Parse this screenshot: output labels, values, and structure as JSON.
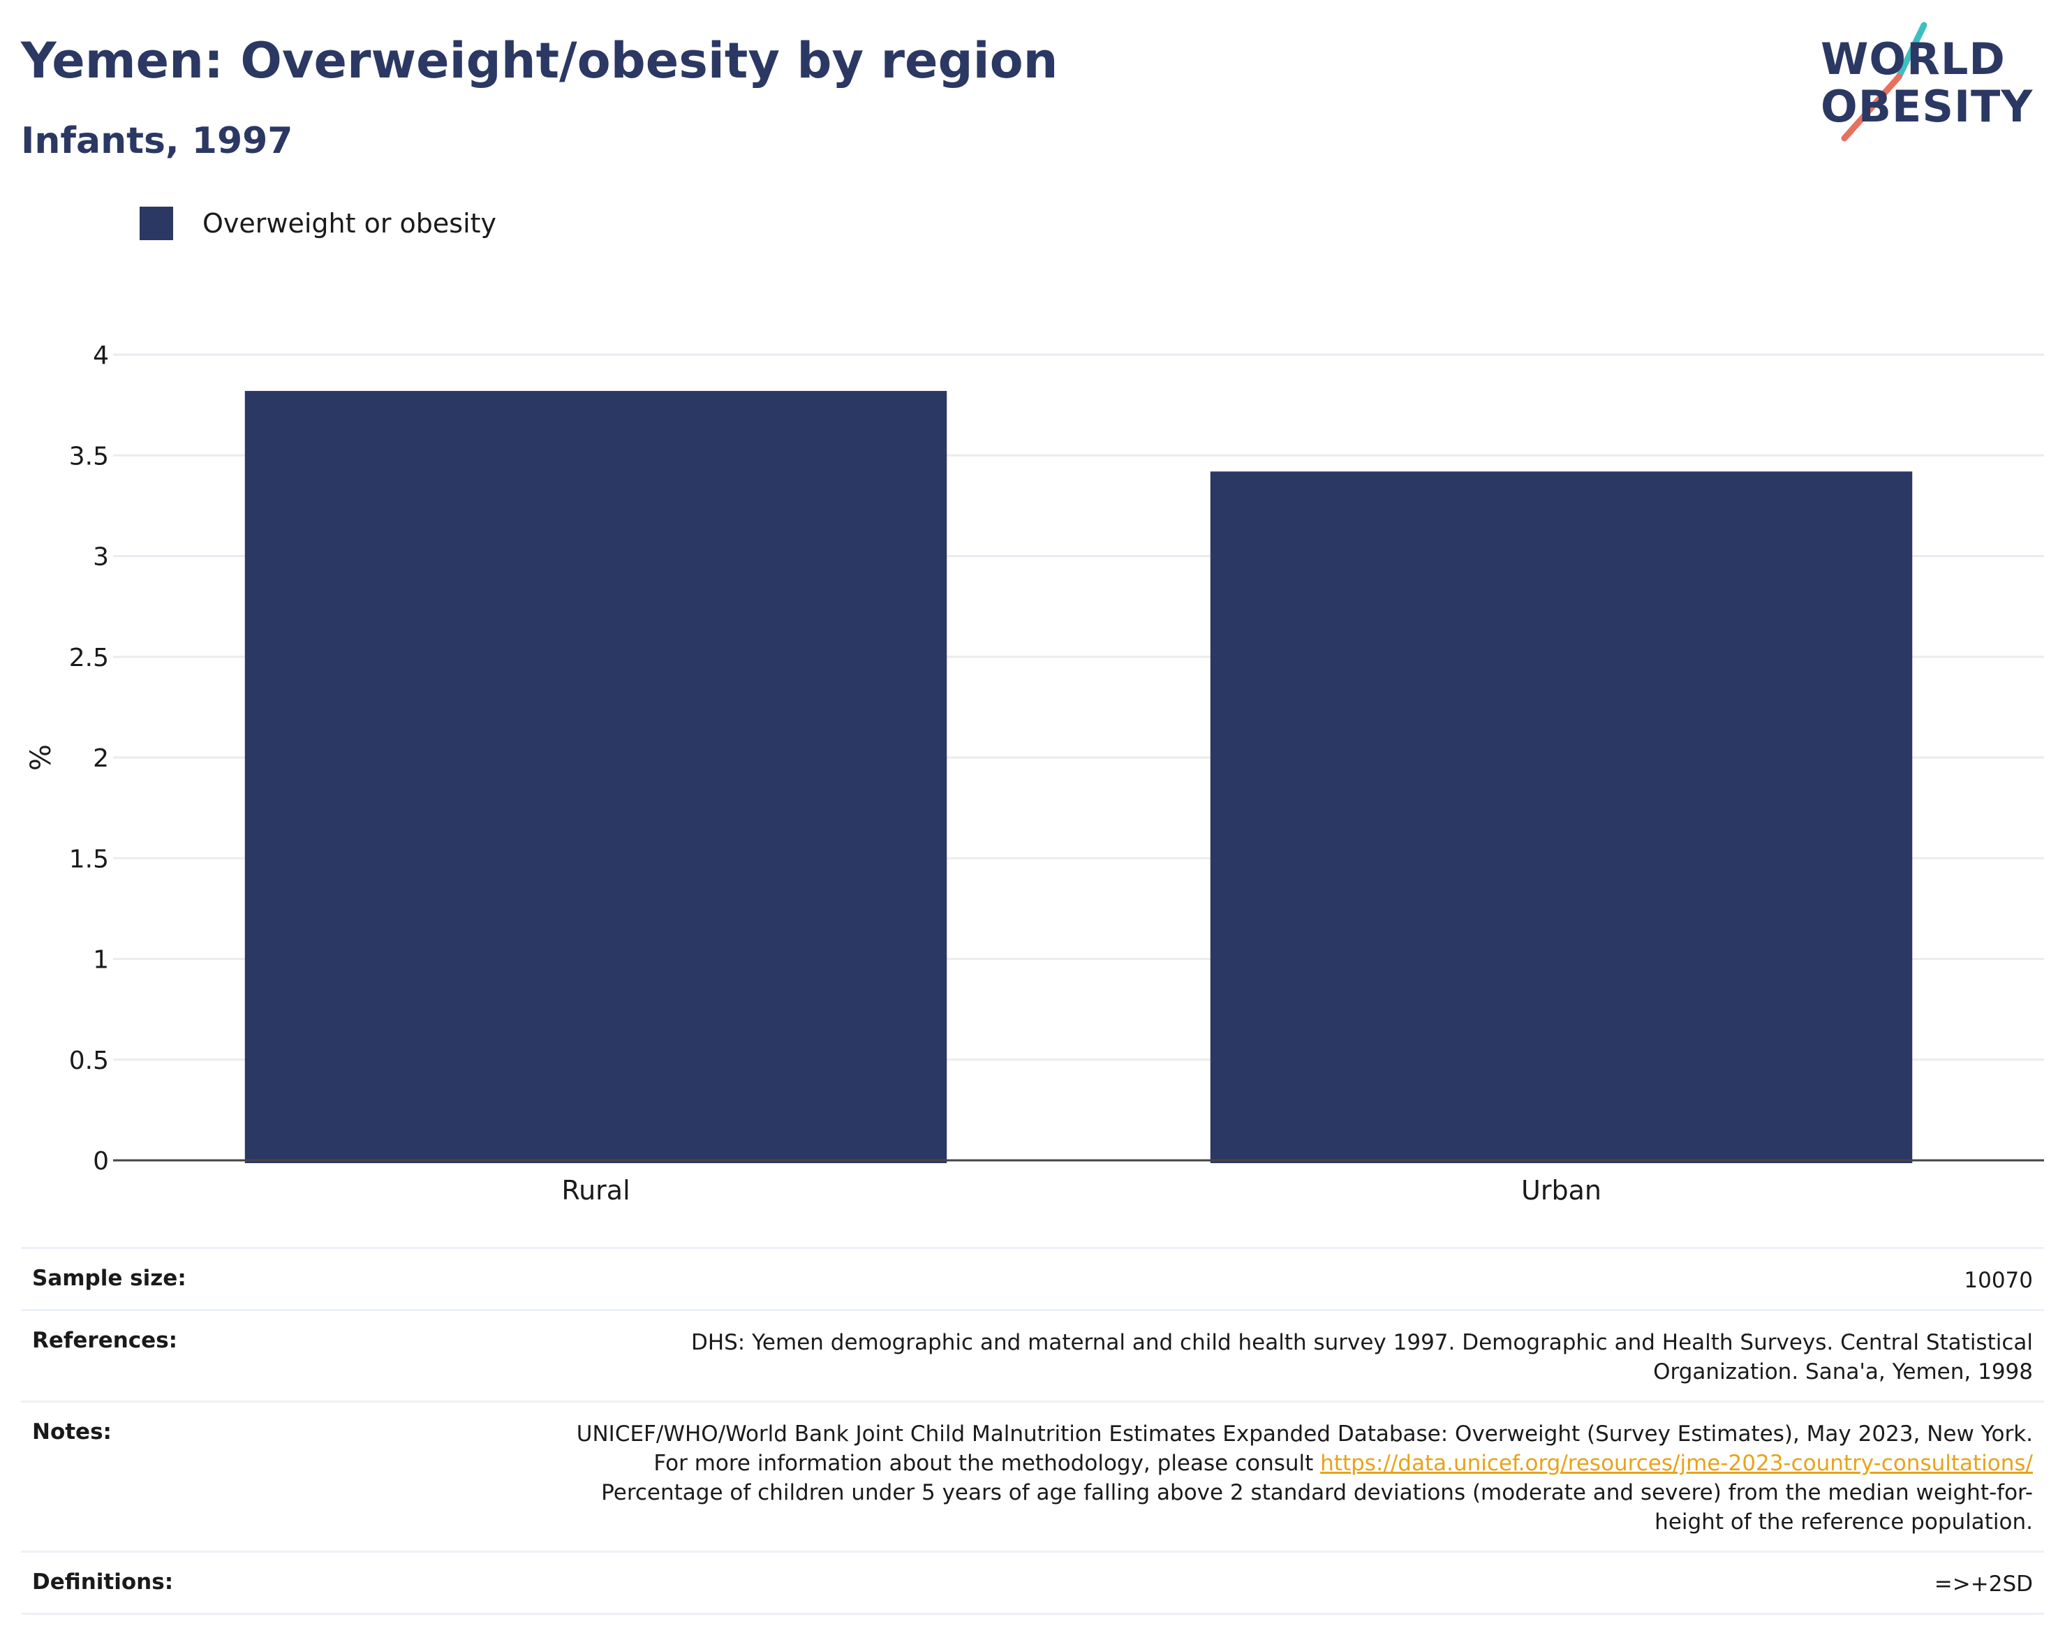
{
  "header": {
    "title": "Yemen: Overweight/obesity by region",
    "subtitle": "Infants, 1997"
  },
  "logo": {
    "line1": "WORLD",
    "line2": "OBESITY",
    "accent_teal": "#3dbfbf",
    "accent_coral": "#e8705f"
  },
  "chart_data": {
    "type": "bar",
    "categories": [
      "Rural",
      "Urban"
    ],
    "series": [
      {
        "name": "Overweight or obesity",
        "values": [
          3.82,
          3.42
        ],
        "color": "#2b3863"
      }
    ],
    "ylabel": "%",
    "ylim": [
      0,
      4
    ],
    "yticks": [
      "0",
      "0.5",
      "1",
      "1.5",
      "2",
      "2.5",
      "3",
      "3.5",
      "4"
    ],
    "grid": true,
    "legend": "top-left"
  },
  "info": {
    "sample_size": {
      "label": "Sample size:",
      "value": "10070"
    },
    "references": {
      "label": "References:",
      "value": "DHS: Yemen demographic and maternal and child health survey 1997. Demographic and Health Surveys. Central Statistical Organization. Sana'a, Yemen, 1998"
    },
    "notes": {
      "label": "Notes:",
      "text_before": "UNICEF/WHO/World Bank Joint Child Malnutrition Estimates Expanded Database: Overweight (Survey Estimates), May 2023, New York. For more information about the methodology, please consult ",
      "link": "https://data.unicef.org/resources/jme-2023-country-consultations/",
      "text_after": " Percentage of children under 5 years of age falling above 2 standard deviations (moderate and severe) from the median weight-for-height of the reference population."
    },
    "definitions": {
      "label": "Definitions:",
      "value": "=>+2SD"
    }
  }
}
